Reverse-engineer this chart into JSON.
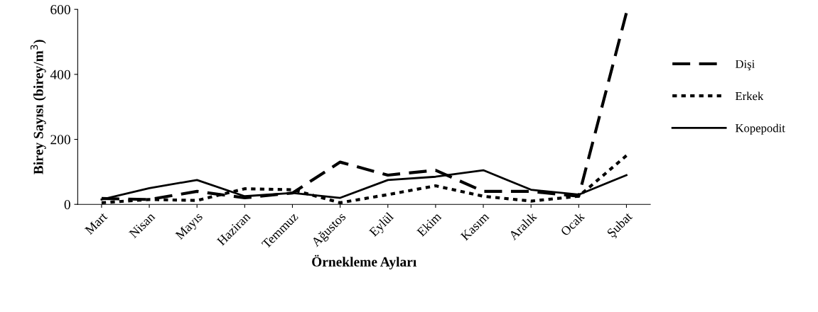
{
  "chart_data": {
    "type": "line",
    "xlabel": "Örnekleme Ayları",
    "ylabel": "Birey Sayısı (birey/m$^{3}$)",
    "categories": [
      "Mart",
      "Nisan",
      "Mayıs",
      "Haziran",
      "Temmuz",
      "Ağustos",
      "Eylül",
      "Ekim",
      "Kasım",
      "Aralık",
      "Ocak",
      "Şubat"
    ],
    "series": [
      {
        "name": "Dişi",
        "color": "#000000",
        "line_style": "dashed",
        "values": [
          18,
          15,
          40,
          20,
          35,
          130,
          90,
          105,
          40,
          40,
          25,
          590
        ]
      },
      {
        "name": "Erkek",
        "color": "#000000",
        "line_style": "dotted",
        "values": [
          5,
          15,
          12,
          48,
          45,
          5,
          30,
          57,
          25,
          10,
          25,
          150
        ]
      },
      {
        "name": "Kopepodit",
        "color": "#000000",
        "line_style": "solid",
        "values": [
          15,
          50,
          75,
          25,
          35,
          20,
          75,
          85,
          105,
          45,
          30,
          90
        ]
      }
    ],
    "ylim": [
      0,
      600
    ],
    "yticks": [
      0,
      200,
      400,
      600
    ],
    "grid": false,
    "legend": "right",
    "marker": "none"
  }
}
